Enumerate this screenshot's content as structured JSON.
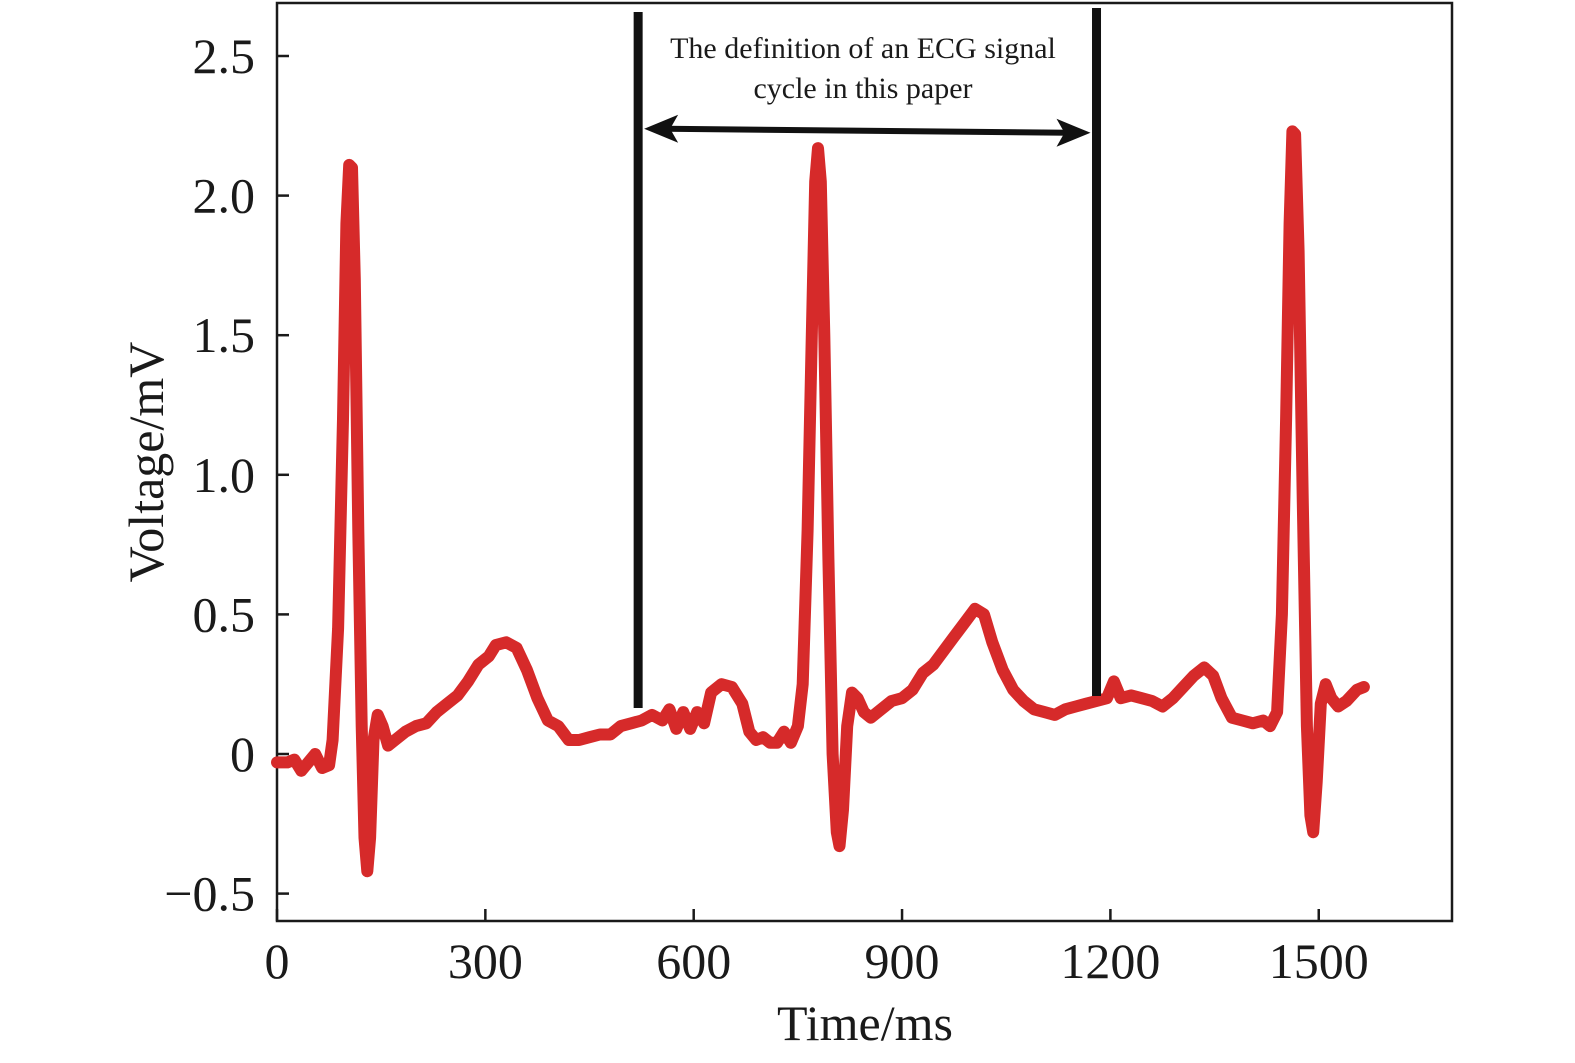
{
  "chart_data": {
    "type": "line",
    "title": "",
    "xlabel": "Time/ms",
    "ylabel": "Voltage/mV",
    "xlim": [
      0,
      1690
    ],
    "ylim": [
      -0.6,
      2.7
    ],
    "xticks": [
      0,
      300,
      600,
      900,
      1200,
      1500
    ],
    "xtick_labels": [
      "0",
      "300",
      "600",
      "900",
      "1200",
      "1500"
    ],
    "yticks": [
      -0.5,
      0,
      0.5,
      1.0,
      1.5,
      2.0,
      2.5
    ],
    "ytick_labels": [
      "−0.5",
      "0",
      "0.5",
      "1.0",
      "1.5",
      "2.0",
      "2.5"
    ],
    "grid": false,
    "legend": "none",
    "series": [
      {
        "color": "#d62a2a",
        "points": [
          [
            0,
            -0.03
          ],
          [
            15,
            -0.03
          ],
          [
            25,
            -0.02
          ],
          [
            35,
            -0.06
          ],
          [
            45,
            -0.03
          ],
          [
            55,
            0.0
          ],
          [
            65,
            -0.05
          ],
          [
            75,
            -0.04
          ],
          [
            80,
            0.05
          ],
          [
            88,
            0.45
          ],
          [
            95,
            1.2
          ],
          [
            100,
            1.9
          ],
          [
            104,
            2.11
          ],
          [
            108,
            2.1
          ],
          [
            112,
            1.7
          ],
          [
            117,
            0.8
          ],
          [
            122,
            0.1
          ],
          [
            126,
            -0.3
          ],
          [
            130,
            -0.42
          ],
          [
            134,
            -0.3
          ],
          [
            139,
            0.05
          ],
          [
            145,
            0.14
          ],
          [
            152,
            0.1
          ],
          [
            160,
            0.03
          ],
          [
            170,
            0.05
          ],
          [
            185,
            0.08
          ],
          [
            200,
            0.1
          ],
          [
            215,
            0.11
          ],
          [
            230,
            0.15
          ],
          [
            245,
            0.18
          ],
          [
            260,
            0.21
          ],
          [
            275,
            0.26
          ],
          [
            290,
            0.32
          ],
          [
            305,
            0.35
          ],
          [
            315,
            0.39
          ],
          [
            330,
            0.4
          ],
          [
            345,
            0.38
          ],
          [
            360,
            0.3
          ],
          [
            375,
            0.2
          ],
          [
            390,
            0.12
          ],
          [
            405,
            0.1
          ],
          [
            420,
            0.05
          ],
          [
            435,
            0.05
          ],
          [
            450,
            0.06
          ],
          [
            465,
            0.07
          ],
          [
            480,
            0.07
          ],
          [
            495,
            0.1
          ],
          [
            510,
            0.11
          ],
          [
            525,
            0.12
          ],
          [
            540,
            0.14
          ],
          [
            555,
            0.12
          ],
          [
            565,
            0.16
          ],
          [
            575,
            0.09
          ],
          [
            585,
            0.15
          ],
          [
            595,
            0.09
          ],
          [
            605,
            0.15
          ],
          [
            615,
            0.11
          ],
          [
            625,
            0.22
          ],
          [
            640,
            0.25
          ],
          [
            655,
            0.24
          ],
          [
            670,
            0.18
          ],
          [
            680,
            0.08
          ],
          [
            690,
            0.05
          ],
          [
            700,
            0.06
          ],
          [
            710,
            0.04
          ],
          [
            720,
            0.04
          ],
          [
            730,
            0.08
          ],
          [
            740,
            0.04
          ],
          [
            750,
            0.1
          ],
          [
            757,
            0.25
          ],
          [
            764,
            0.8
          ],
          [
            770,
            1.5
          ],
          [
            775,
            2.05
          ],
          [
            779,
            2.17
          ],
          [
            783,
            2.05
          ],
          [
            788,
            1.5
          ],
          [
            794,
            0.7
          ],
          [
            800,
            0.0
          ],
          [
            806,
            -0.28
          ],
          [
            810,
            -0.33
          ],
          [
            815,
            -0.2
          ],
          [
            821,
            0.1
          ],
          [
            828,
            0.22
          ],
          [
            836,
            0.2
          ],
          [
            845,
            0.15
          ],
          [
            855,
            0.13
          ],
          [
            870,
            0.16
          ],
          [
            885,
            0.19
          ],
          [
            900,
            0.2
          ],
          [
            915,
            0.23
          ],
          [
            930,
            0.29
          ],
          [
            945,
            0.32
          ],
          [
            960,
            0.37
          ],
          [
            975,
            0.42
          ],
          [
            990,
            0.47
          ],
          [
            1005,
            0.52
          ],
          [
            1018,
            0.5
          ],
          [
            1030,
            0.4
          ],
          [
            1045,
            0.3
          ],
          [
            1060,
            0.23
          ],
          [
            1075,
            0.19
          ],
          [
            1090,
            0.16
          ],
          [
            1105,
            0.15
          ],
          [
            1120,
            0.14
          ],
          [
            1135,
            0.16
          ],
          [
            1150,
            0.17
          ],
          [
            1165,
            0.18
          ],
          [
            1180,
            0.19
          ],
          [
            1195,
            0.2
          ],
          [
            1205,
            0.26
          ],
          [
            1215,
            0.2
          ],
          [
            1230,
            0.21
          ],
          [
            1245,
            0.2
          ],
          [
            1260,
            0.19
          ],
          [
            1275,
            0.17
          ],
          [
            1290,
            0.2
          ],
          [
            1305,
            0.24
          ],
          [
            1320,
            0.28
          ],
          [
            1335,
            0.31
          ],
          [
            1348,
            0.28
          ],
          [
            1360,
            0.2
          ],
          [
            1375,
            0.13
          ],
          [
            1390,
            0.12
          ],
          [
            1405,
            0.11
          ],
          [
            1420,
            0.12
          ],
          [
            1430,
            0.1
          ],
          [
            1440,
            0.15
          ],
          [
            1447,
            0.5
          ],
          [
            1453,
            1.2
          ],
          [
            1458,
            1.9
          ],
          [
            1462,
            2.23
          ],
          [
            1466,
            2.22
          ],
          [
            1471,
            1.8
          ],
          [
            1477,
            0.9
          ],
          [
            1483,
            0.1
          ],
          [
            1488,
            -0.22
          ],
          [
            1492,
            -0.28
          ],
          [
            1497,
            -0.1
          ],
          [
            1503,
            0.18
          ],
          [
            1510,
            0.25
          ],
          [
            1518,
            0.2
          ],
          [
            1528,
            0.17
          ],
          [
            1540,
            0.19
          ],
          [
            1555,
            0.23
          ],
          [
            1565,
            0.24
          ]
        ]
      }
    ],
    "annotations": {
      "text_lines": [
        "The definition of an ECG signal",
        "cycle in this paper"
      ],
      "marker_lines_x": [
        520,
        1180
      ],
      "arrow_y": 2.25
    }
  }
}
